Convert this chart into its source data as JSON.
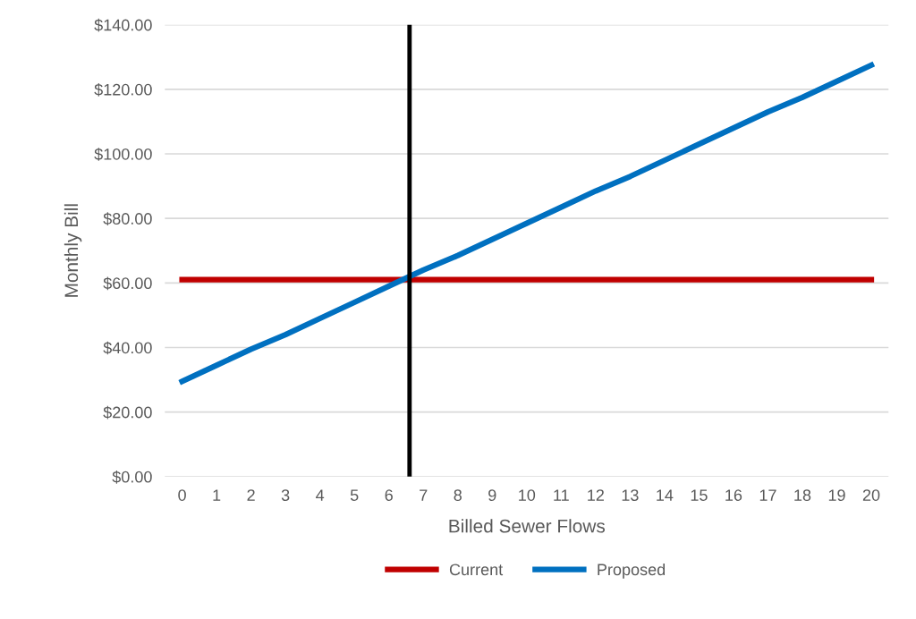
{
  "chart_data": {
    "type": "line",
    "xlabel": "Billed Sewer Flows",
    "ylabel": "Monthly Bill",
    "x": [
      0,
      1,
      2,
      3,
      4,
      5,
      6,
      7,
      8,
      9,
      10,
      11,
      12,
      13,
      14,
      15,
      16,
      17,
      18,
      19,
      20
    ],
    "series": [
      {
        "name": "Current",
        "color": "#c00000",
        "values": [
          61,
          61,
          61,
          61,
          61,
          61,
          61,
          61,
          61,
          61,
          61,
          61,
          61,
          61,
          61,
          61,
          61,
          61,
          61,
          61,
          61
        ]
      },
      {
        "name": "Proposed",
        "color": "#0070c0",
        "values": [
          29.5,
          34.5,
          39.5,
          44,
          49,
          54,
          59,
          64,
          68.5,
          73.5,
          78.5,
          83.5,
          88.5,
          93,
          98,
          103,
          108,
          113,
          117.5,
          122.5,
          127.5
        ]
      }
    ],
    "xlim": [
      -0.5,
      20.5
    ],
    "xticks": [
      0,
      1,
      2,
      3,
      4,
      5,
      6,
      7,
      8,
      9,
      10,
      11,
      12,
      13,
      14,
      15,
      16,
      17,
      18,
      19,
      20
    ],
    "ylim": [
      0,
      140
    ],
    "yticks": [
      {
        "value": 0,
        "label": "$0.00"
      },
      {
        "value": 20,
        "label": "$20.00"
      },
      {
        "value": 40,
        "label": "$40.00"
      },
      {
        "value": 60,
        "label": "$60.00"
      },
      {
        "value": 80,
        "label": "$80.00"
      },
      {
        "value": 100,
        "label": "$100.00"
      },
      {
        "value": 120,
        "label": "$120.00"
      },
      {
        "value": 140,
        "label": "$140.00"
      }
    ],
    "ref_lines": [
      {
        "axis": "x",
        "value": 6.6,
        "color": "#000000",
        "line_style": "solid"
      }
    ],
    "grid": "y",
    "legend": "bottom",
    "marker": "none",
    "line_style": "solid"
  }
}
